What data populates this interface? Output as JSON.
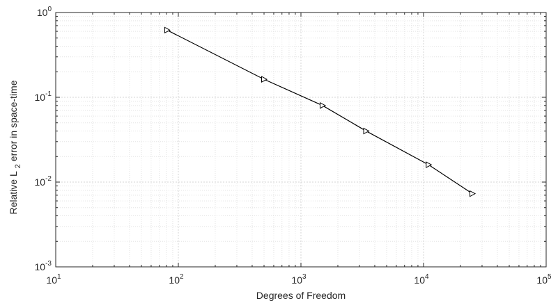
{
  "chart_data": {
    "type": "line",
    "xscale": "log",
    "yscale": "log",
    "xlabel": "Degrees of Freedom",
    "ylabel": "Relative L 2 error in space-time",
    "ylabel_parts": {
      "before": "Relative L",
      "subscript": "2",
      "after": " error in space-time"
    },
    "xlim": [
      10,
      100000
    ],
    "ylim": [
      0.001,
      1
    ],
    "grid": true,
    "minor_grid": true,
    "x_ticks": [
      {
        "value": 10,
        "base": "10",
        "exp": "1"
      },
      {
        "value": 100,
        "base": "10",
        "exp": "2"
      },
      {
        "value": 1000,
        "base": "10",
        "exp": "3"
      },
      {
        "value": 10000,
        "base": "10",
        "exp": "4"
      },
      {
        "value": 100000,
        "base": "10",
        "exp": "5"
      }
    ],
    "y_ticks": [
      {
        "value": 0.001,
        "base": "10",
        "exp": "-3"
      },
      {
        "value": 0.01,
        "base": "10",
        "exp": "-2"
      },
      {
        "value": 0.1,
        "base": "10",
        "exp": "-1"
      },
      {
        "value": 1,
        "base": "10",
        "exp": "0"
      }
    ],
    "series": [
      {
        "marker": "triangle-right",
        "color": "#000000",
        "x": [
          81,
          500,
          1500,
          3400,
          11000,
          25000
        ],
        "y": [
          0.62,
          0.163,
          0.08,
          0.04,
          0.016,
          0.0073
        ]
      }
    ]
  }
}
